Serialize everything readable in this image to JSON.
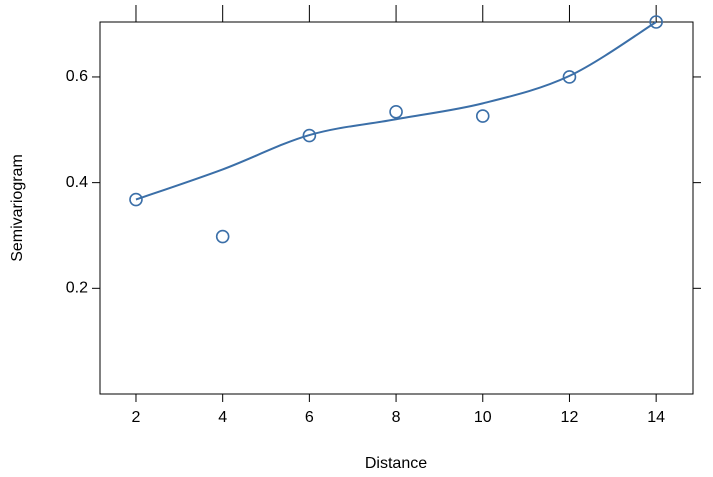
{
  "chart_data": {
    "type": "scatter",
    "x_label": "Distance",
    "y_label": "Semivariogram",
    "xlim": [
      1.17,
      14.85
    ],
    "ylim": [
      0.0,
      0.704
    ],
    "xticks": [
      2,
      4,
      6,
      8,
      10,
      12,
      14
    ],
    "yticks": [
      0.2,
      0.4,
      0.6
    ],
    "series": [
      {
        "color": "#3b6fa8",
        "mode": "markers",
        "x": [
          2,
          4,
          6,
          8,
          10,
          12,
          14
        ],
        "values": [
          0.368,
          0.298,
          0.489,
          0.534,
          0.526,
          0.6,
          0.704
        ]
      },
      {
        "color": "#3b6fa8",
        "mode": "line",
        "x": [
          2,
          4,
          6,
          8,
          10,
          12,
          14
        ],
        "values": [
          0.368,
          0.425,
          0.49,
          0.52,
          0.55,
          0.602,
          0.704
        ]
      }
    ]
  }
}
